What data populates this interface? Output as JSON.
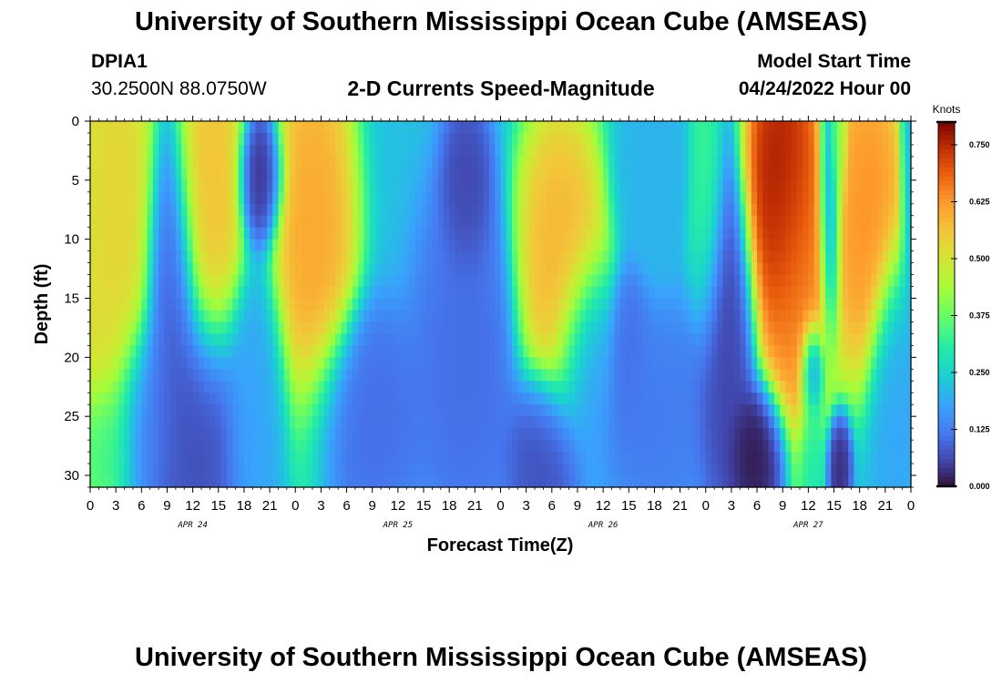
{
  "header": {
    "title": "University of Southern Mississippi Ocean Cube (AMSEAS)",
    "station": "DPIA1",
    "coordinates": "30.2500N  88.0750W",
    "subtitle": "2-D Currents Speed-Magnitude",
    "model_start_label": "Model Start Time",
    "model_start_value": "04/24/2022 Hour 00"
  },
  "footer": {
    "title": "University of Southern Mississippi Ocean Cube (AMSEAS)"
  },
  "chart_data": {
    "type": "heatmap",
    "title": "2-D Currents Speed-Magnitude",
    "xlabel": "Forecast Time(Z)",
    "ylabel": "Depth (ft)",
    "x_ticks": [
      "0",
      "3",
      "6",
      "9",
      "12",
      "15",
      "18",
      "21",
      "0",
      "3",
      "6",
      "9",
      "12",
      "15",
      "18",
      "21",
      "0",
      "3",
      "6",
      "9",
      "12",
      "15",
      "18",
      "21",
      "0",
      "3",
      "6",
      "9",
      "12",
      "15",
      "18",
      "21",
      "0"
    ],
    "x_range_hours": [
      0,
      96
    ],
    "date_labels": [
      {
        "label": "APR 24",
        "hour": 12
      },
      {
        "label": "APR 25",
        "hour": 36
      },
      {
        "label": "APR 26",
        "hour": 60
      },
      {
        "label": "APR 27",
        "hour": 84
      }
    ],
    "y_ticks": [
      "0",
      "5",
      "10",
      "15",
      "20",
      "25",
      "30"
    ],
    "y_range_ft": [
      0,
      31
    ],
    "colorbar": {
      "unit": "Knots",
      "ticks": [
        "0.000",
        "0.125",
        "0.250",
        "0.375",
        "0.500",
        "0.625",
        "0.750"
      ],
      "range": [
        0,
        0.8
      ]
    },
    "features": [
      {
        "hour": 0,
        "depth": 12,
        "value": 0.52,
        "sx": 4.5,
        "sy": 14
      },
      {
        "hour": 3,
        "depth": 8,
        "value": 0.55,
        "sx": 3.0,
        "sy": 13
      },
      {
        "hour": 1.5,
        "depth": 27,
        "value": 0.3,
        "sx": 2.5,
        "sy": 4
      },
      {
        "hour": 9.5,
        "depth": 15,
        "value": 0.08,
        "sx": 2.2,
        "sy": 10
      },
      {
        "hour": 6.5,
        "depth": 25,
        "value": 0.12,
        "sx": 3.0,
        "sy": 6
      },
      {
        "hour": 14,
        "depth": 6,
        "value": 0.58,
        "sx": 2.8,
        "sy": 10
      },
      {
        "hour": 12,
        "depth": 26,
        "value": 0.06,
        "sx": 4.0,
        "sy": 8
      },
      {
        "hour": 20,
        "depth": 5,
        "value": 0.02,
        "sx": 1.8,
        "sy": 4
      },
      {
        "hour": 19.5,
        "depth": 24,
        "value": 0.18,
        "sx": 2.6,
        "sy": 8
      },
      {
        "hour": 26,
        "depth": 10,
        "value": 0.62,
        "sx": 3.2,
        "sy": 12
      },
      {
        "hour": 32,
        "depth": 25,
        "value": 0.1,
        "sx": 5.0,
        "sy": 6
      },
      {
        "hour": 44,
        "depth": 6,
        "value": 0.05,
        "sx": 2.0,
        "sy": 5
      },
      {
        "hour": 44,
        "depth": 20,
        "value": 0.1,
        "sx": 4.0,
        "sy": 10
      },
      {
        "hour": 55,
        "depth": 12,
        "value": 0.6,
        "sx": 3.5,
        "sy": 9
      },
      {
        "hour": 53,
        "depth": 28,
        "value": 0.06,
        "sx": 3.0,
        "sy": 5
      },
      {
        "hour": 58,
        "depth": 20,
        "value": 0.15,
        "sx": 2.5,
        "sy": 6
      },
      {
        "hour": 63,
        "depth": 20,
        "value": 0.1,
        "sx": 1.5,
        "sy": 5
      },
      {
        "hour": 66,
        "depth": 25,
        "value": 0.12,
        "sx": 4.0,
        "sy": 6
      },
      {
        "hour": 66,
        "depth": 5,
        "value": 0.2,
        "sx": 3.0,
        "sy": 5
      },
      {
        "hour": 72,
        "depth": 8,
        "value": 0.35,
        "sx": 1.5,
        "sy": 8
      },
      {
        "hour": 74,
        "depth": 18,
        "value": 0.05,
        "sx": 2.5,
        "sy": 10
      },
      {
        "hour": 78,
        "depth": 28,
        "value": 0.0,
        "sx": 2.5,
        "sy": 4
      },
      {
        "hour": 81,
        "depth": 6,
        "value": 0.8,
        "sx": 3.0,
        "sy": 9
      },
      {
        "hour": 83,
        "depth": 14,
        "value": 0.65,
        "sx": 3.0,
        "sy": 10
      },
      {
        "hour": 84.5,
        "depth": 21,
        "value": 0.02,
        "sx": 1.0,
        "sy": 3
      },
      {
        "hour": 84.5,
        "depth": 28,
        "value": 0.28,
        "sx": 1.2,
        "sy": 4
      },
      {
        "hour": 86.5,
        "depth": 8,
        "value": 0.1,
        "sx": 0.9,
        "sy": 8
      },
      {
        "hour": 87.5,
        "depth": 2,
        "value": 0.4,
        "sx": 0.7,
        "sy": 4
      },
      {
        "hour": 91,
        "depth": 8,
        "value": 0.65,
        "sx": 3.0,
        "sy": 9
      },
      {
        "hour": 87.5,
        "depth": 29,
        "value": 0.02,
        "sx": 1.0,
        "sy": 3
      },
      {
        "hour": 94,
        "depth": 22,
        "value": 0.18,
        "sx": 2.0,
        "sy": 8
      },
      {
        "hour": 96,
        "depth": 5,
        "value": 0.2,
        "sx": 0.8,
        "sy": 10
      }
    ]
  }
}
